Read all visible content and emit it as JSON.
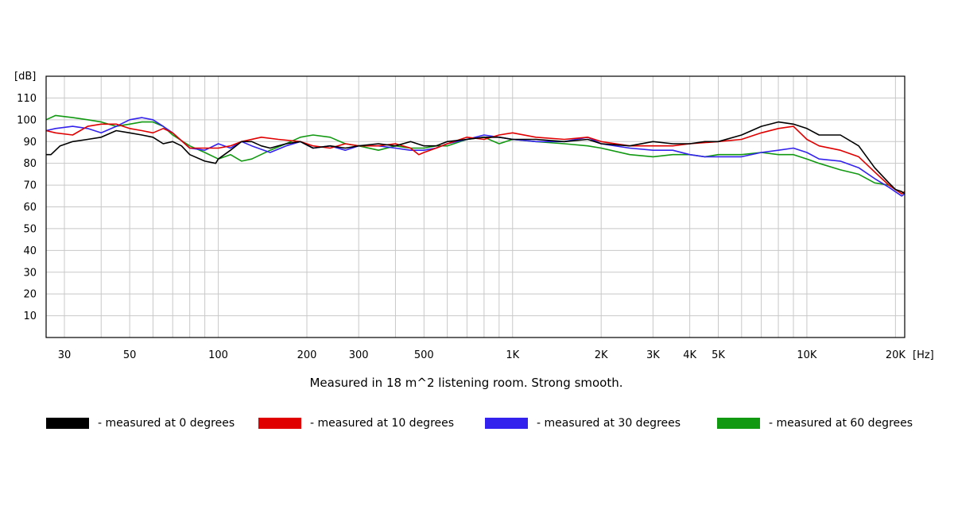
{
  "chart_data": {
    "type": "line",
    "xlabel": "[Hz]",
    "ylabel": "[dB]",
    "xscale": "log",
    "xlim": [
      26,
      21500
    ],
    "ylim": [
      0,
      120
    ],
    "grid": true,
    "caption": "Measured in 18 m^2 listening room. Strong smooth.",
    "legend_position": "bottom",
    "y_ticks": [
      10,
      20,
      30,
      40,
      50,
      60,
      70,
      80,
      90,
      100,
      110
    ],
    "x_ticks": [
      {
        "value": 30,
        "label": "30"
      },
      {
        "value": 50,
        "label": "50"
      },
      {
        "value": 100,
        "label": "100"
      },
      {
        "value": 200,
        "label": "200"
      },
      {
        "value": 300,
        "label": "300"
      },
      {
        "value": 500,
        "label": "500"
      },
      {
        "value": 1000,
        "label": "1K"
      },
      {
        "value": 2000,
        "label": "2K"
      },
      {
        "value": 3000,
        "label": "3K"
      },
      {
        "value": 4000,
        "label": "4K"
      },
      {
        "value": 5000,
        "label": "5K"
      },
      {
        "value": 10000,
        "label": "10K"
      },
      {
        "value": 20000,
        "label": "20K"
      }
    ],
    "series": [
      {
        "name": "- measured at 0 degrees",
        "color": "#000000",
        "points": [
          [
            26,
            84
          ],
          [
            27,
            84
          ],
          [
            29,
            88
          ],
          [
            32,
            90
          ],
          [
            36,
            91
          ],
          [
            40,
            92
          ],
          [
            45,
            95
          ],
          [
            50,
            94
          ],
          [
            55,
            93
          ],
          [
            60,
            92
          ],
          [
            65,
            89
          ],
          [
            70,
            90
          ],
          [
            75,
            88
          ],
          [
            80,
            84
          ],
          [
            90,
            81
          ],
          [
            98,
            80
          ],
          [
            100,
            82
          ],
          [
            110,
            86
          ],
          [
            120,
            90
          ],
          [
            130,
            90
          ],
          [
            140,
            88
          ],
          [
            150,
            87
          ],
          [
            170,
            89
          ],
          [
            190,
            90
          ],
          [
            210,
            87
          ],
          [
            240,
            88
          ],
          [
            270,
            87
          ],
          [
            300,
            88
          ],
          [
            350,
            89
          ],
          [
            400,
            88
          ],
          [
            450,
            90
          ],
          [
            500,
            88
          ],
          [
            550,
            88
          ],
          [
            600,
            90
          ],
          [
            700,
            91
          ],
          [
            800,
            92
          ],
          [
            900,
            92
          ],
          [
            1000,
            91
          ],
          [
            1200,
            91
          ],
          [
            1500,
            90
          ],
          [
            1800,
            91
          ],
          [
            2000,
            89
          ],
          [
            2500,
            88
          ],
          [
            3000,
            90
          ],
          [
            3500,
            89
          ],
          [
            4000,
            89
          ],
          [
            4500,
            90
          ],
          [
            5000,
            90
          ],
          [
            6000,
            93
          ],
          [
            7000,
            97
          ],
          [
            8000,
            99
          ],
          [
            9000,
            98
          ],
          [
            10000,
            96
          ],
          [
            11000,
            93
          ],
          [
            13000,
            93
          ],
          [
            15000,
            88
          ],
          [
            17000,
            78
          ],
          [
            19000,
            71
          ],
          [
            20000,
            68
          ],
          [
            21000,
            67
          ],
          [
            21500,
            66
          ]
        ]
      },
      {
        "name": "- measured at 10 degrees",
        "color": "#e00000",
        "points": [
          [
            26,
            95
          ],
          [
            28,
            94
          ],
          [
            32,
            93
          ],
          [
            36,
            97
          ],
          [
            40,
            98
          ],
          [
            45,
            98
          ],
          [
            50,
            96
          ],
          [
            55,
            95
          ],
          [
            60,
            94
          ],
          [
            65,
            96
          ],
          [
            70,
            94
          ],
          [
            80,
            87
          ],
          [
            90,
            87
          ],
          [
            100,
            87
          ],
          [
            110,
            88
          ],
          [
            120,
            90
          ],
          [
            140,
            92
          ],
          [
            160,
            91
          ],
          [
            190,
            90
          ],
          [
            210,
            88
          ],
          [
            240,
            87
          ],
          [
            270,
            89
          ],
          [
            300,
            88
          ],
          [
            350,
            88
          ],
          [
            400,
            89
          ],
          [
            450,
            87
          ],
          [
            480,
            84
          ],
          [
            500,
            85
          ],
          [
            550,
            87
          ],
          [
            600,
            89
          ],
          [
            700,
            92
          ],
          [
            800,
            91
          ],
          [
            900,
            93
          ],
          [
            1000,
            94
          ],
          [
            1200,
            92
          ],
          [
            1500,
            91
          ],
          [
            1800,
            92
          ],
          [
            2000,
            90
          ],
          [
            2500,
            88
          ],
          [
            3000,
            88
          ],
          [
            3500,
            88
          ],
          [
            4000,
            89
          ],
          [
            5000,
            90
          ],
          [
            6000,
            91
          ],
          [
            7000,
            94
          ],
          [
            8000,
            96
          ],
          [
            9000,
            97
          ],
          [
            10000,
            91
          ],
          [
            11000,
            88
          ],
          [
            13000,
            86
          ],
          [
            15000,
            83
          ],
          [
            17000,
            76
          ],
          [
            19000,
            70
          ],
          [
            21000,
            66
          ],
          [
            21500,
            67
          ]
        ]
      },
      {
        "name": "- measured at 30 degrees",
        "color": "#3322ee",
        "points": [
          [
            26,
            95
          ],
          [
            28,
            96
          ],
          [
            32,
            97
          ],
          [
            36,
            96
          ],
          [
            40,
            94
          ],
          [
            45,
            97
          ],
          [
            50,
            100
          ],
          [
            55,
            101
          ],
          [
            60,
            100
          ],
          [
            65,
            97
          ],
          [
            70,
            94
          ],
          [
            80,
            87
          ],
          [
            90,
            86
          ],
          [
            100,
            89
          ],
          [
            110,
            87
          ],
          [
            120,
            90
          ],
          [
            130,
            88
          ],
          [
            150,
            85
          ],
          [
            170,
            88
          ],
          [
            190,
            90
          ],
          [
            210,
            87
          ],
          [
            240,
            88
          ],
          [
            270,
            86
          ],
          [
            300,
            88
          ],
          [
            350,
            88
          ],
          [
            400,
            87
          ],
          [
            450,
            86
          ],
          [
            500,
            86
          ],
          [
            550,
            87
          ],
          [
            600,
            89
          ],
          [
            700,
            91
          ],
          [
            800,
            93
          ],
          [
            900,
            92
          ],
          [
            1000,
            91
          ],
          [
            1200,
            90
          ],
          [
            1500,
            90
          ],
          [
            1800,
            92
          ],
          [
            2000,
            89
          ],
          [
            2500,
            87
          ],
          [
            3000,
            86
          ],
          [
            3500,
            86
          ],
          [
            4000,
            84
          ],
          [
            4500,
            83
          ],
          [
            5000,
            83
          ],
          [
            6000,
            83
          ],
          [
            7000,
            85
          ],
          [
            8000,
            86
          ],
          [
            9000,
            87
          ],
          [
            10000,
            85
          ],
          [
            11000,
            82
          ],
          [
            13000,
            81
          ],
          [
            15000,
            78
          ],
          [
            17000,
            73
          ],
          [
            19000,
            69
          ],
          [
            21000,
            65
          ],
          [
            21500,
            66
          ]
        ]
      },
      {
        "name": "- measured at 60 degrees",
        "color": "#119911",
        "points": [
          [
            26,
            100
          ],
          [
            28,
            102
          ],
          [
            32,
            101
          ],
          [
            36,
            100
          ],
          [
            40,
            99
          ],
          [
            45,
            97
          ],
          [
            50,
            98
          ],
          [
            55,
            99
          ],
          [
            60,
            99
          ],
          [
            65,
            97
          ],
          [
            70,
            93
          ],
          [
            80,
            88
          ],
          [
            90,
            85
          ],
          [
            100,
            82
          ],
          [
            110,
            84
          ],
          [
            120,
            81
          ],
          [
            130,
            82
          ],
          [
            150,
            86
          ],
          [
            170,
            89
          ],
          [
            190,
            92
          ],
          [
            210,
            93
          ],
          [
            240,
            92
          ],
          [
            270,
            89
          ],
          [
            300,
            88
          ],
          [
            350,
            86
          ],
          [
            400,
            88
          ],
          [
            450,
            87
          ],
          [
            500,
            87
          ],
          [
            550,
            88
          ],
          [
            600,
            88
          ],
          [
            700,
            91
          ],
          [
            800,
            92
          ],
          [
            900,
            89
          ],
          [
            1000,
            91
          ],
          [
            1200,
            90
          ],
          [
            1500,
            89
          ],
          [
            1800,
            88
          ],
          [
            2000,
            87
          ],
          [
            2500,
            84
          ],
          [
            3000,
            83
          ],
          [
            3500,
            84
          ],
          [
            4000,
            84
          ],
          [
            4500,
            83
          ],
          [
            5000,
            84
          ],
          [
            6000,
            84
          ],
          [
            7000,
            85
          ],
          [
            8000,
            84
          ],
          [
            9000,
            84
          ],
          [
            10000,
            82
          ],
          [
            11000,
            80
          ],
          [
            13000,
            77
          ],
          [
            15000,
            75
          ],
          [
            17000,
            71
          ],
          [
            19000,
            70
          ],
          [
            21000,
            66
          ],
          [
            21500,
            67
          ]
        ]
      }
    ]
  }
}
